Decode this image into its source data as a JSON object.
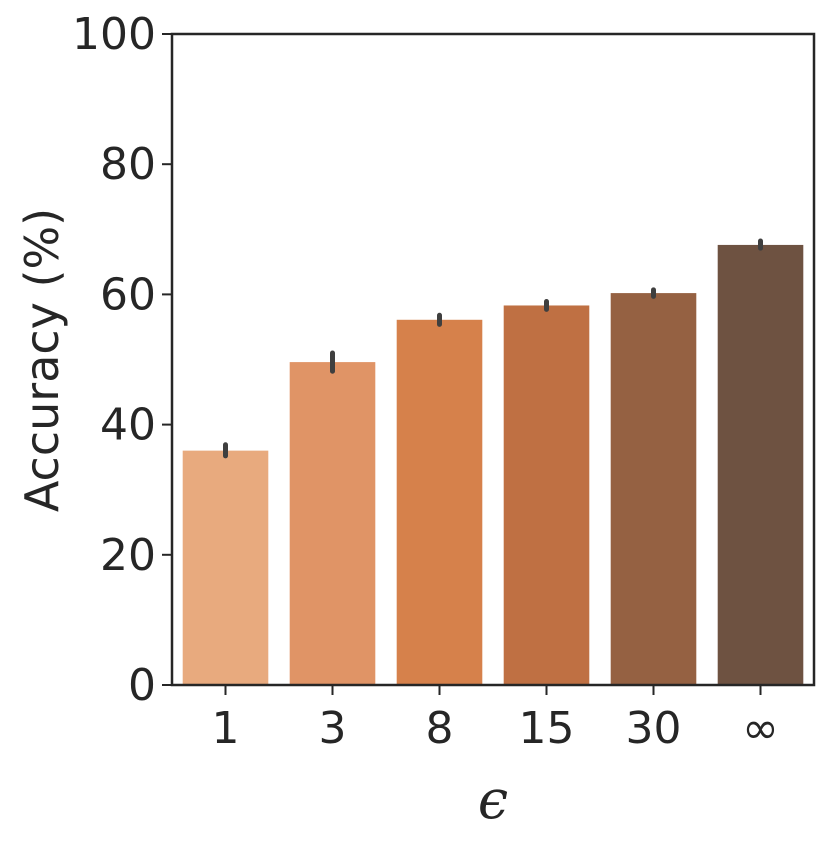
{
  "chart_data": {
    "type": "bar",
    "title": "",
    "xlabel": "ϵ",
    "ylabel": "Accuracy (%)",
    "categories": [
      "1",
      "3",
      "8",
      "15",
      "30",
      "∞"
    ],
    "values": [
      36.0,
      49.6,
      56.1,
      58.3,
      60.2,
      67.6
    ],
    "error_bars": [
      [
        35.2,
        36.9
      ],
      [
        48.2,
        51.0
      ],
      [
        55.4,
        56.8
      ],
      [
        57.7,
        58.9
      ],
      [
        59.7,
        60.7
      ],
      [
        67.1,
        68.2
      ]
    ],
    "ylim": [
      0,
      100
    ],
    "yticks": [
      0,
      20,
      40,
      60,
      80,
      100
    ],
    "grid": false,
    "colors": [
      "#E8AA7E",
      "#E09466",
      "#D6814B",
      "#BF7043",
      "#956142",
      "#6E5241"
    ],
    "error_bar_color": "#3F3F3F"
  }
}
